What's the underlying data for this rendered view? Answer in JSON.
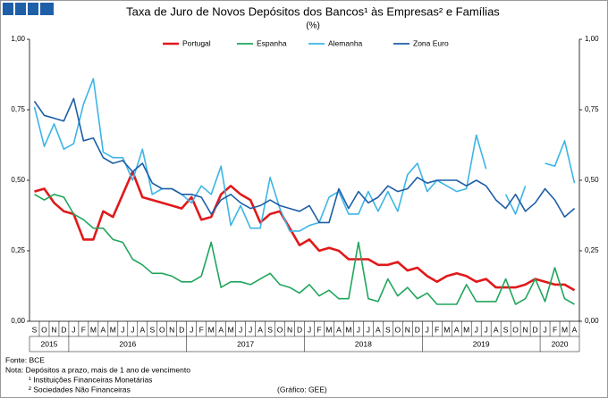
{
  "chart_data": {
    "type": "line",
    "title": "Taxa de Juro de Novos Depósitos dos Bancos¹ às Empresas² e Famílias",
    "subtitle": "(%)",
    "categories": [
      "S",
      "O",
      "N",
      "D",
      "J",
      "F",
      "M",
      "A",
      "M",
      "J",
      "J",
      "A",
      "S",
      "O",
      "N",
      "D",
      "J",
      "F",
      "M",
      "A",
      "M",
      "J",
      "J",
      "A",
      "S",
      "O",
      "N",
      "D",
      "J",
      "F",
      "M",
      "A",
      "M",
      "J",
      "J",
      "A",
      "S",
      "O",
      "N",
      "D",
      "J",
      "F",
      "M",
      "A",
      "M",
      "J",
      "J",
      "A",
      "S",
      "O",
      "N",
      "D",
      "J",
      "F",
      "M",
      "A"
    ],
    "years": [
      "2015",
      "2016",
      "2017",
      "2018",
      "2019",
      "2020"
    ],
    "series": [
      {
        "name": "Portugal",
        "color": "#e0191b",
        "values": [
          0.46,
          0.47,
          0.42,
          0.39,
          0.38,
          0.29,
          0.29,
          0.39,
          0.37,
          0.45,
          0.53,
          0.44,
          0.43,
          0.42,
          0.41,
          0.4,
          0.44,
          0.36,
          0.37,
          0.45,
          0.48,
          0.45,
          0.43,
          0.35,
          0.38,
          0.39,
          0.33,
          0.27,
          0.29,
          0.25,
          0.26,
          0.25,
          0.22,
          0.22,
          0.22,
          0.2,
          0.2,
          0.21,
          0.18,
          0.19,
          0.16,
          0.14,
          0.16,
          0.17,
          0.16,
          0.14,
          0.15,
          0.12,
          0.12,
          0.12,
          0.13,
          0.15,
          0.14,
          0.13,
          0.13,
          0.11
        ]
      },
      {
        "name": "Espanha",
        "color": "#20a55c",
        "values": [
          0.45,
          0.43,
          0.45,
          0.44,
          0.38,
          0.36,
          0.33,
          0.33,
          0.29,
          0.28,
          0.22,
          0.2,
          0.17,
          0.17,
          0.16,
          0.14,
          0.14,
          0.16,
          0.28,
          0.12,
          0.14,
          0.14,
          0.13,
          0.15,
          0.17,
          0.13,
          0.12,
          0.1,
          0.13,
          0.09,
          0.11,
          0.08,
          0.08,
          0.28,
          0.08,
          0.07,
          0.15,
          0.09,
          0.12,
          0.08,
          0.1,
          0.06,
          0.06,
          0.06,
          0.13,
          0.07,
          0.07,
          0.07,
          0.15,
          0.06,
          0.08,
          0.15,
          0.07,
          0.19,
          0.08,
          0.06
        ]
      },
      {
        "name": "Alemanha",
        "color": "#3db5e6",
        "values": [
          0.76,
          0.62,
          0.7,
          0.61,
          0.63,
          0.77,
          0.86,
          0.6,
          0.58,
          0.58,
          0.5,
          0.61,
          0.45,
          0.47,
          0.47,
          0.45,
          0.42,
          0.48,
          0.45,
          0.55,
          0.34,
          0.41,
          0.33,
          0.33,
          0.51,
          0.4,
          0.32,
          0.32,
          0.34,
          0.35,
          0.44,
          0.46,
          0.38,
          0.38,
          0.46,
          0.39,
          0.46,
          0.39,
          0.52,
          0.56,
          0.46,
          0.5,
          0.48,
          0.46,
          0.47,
          0.66,
          0.54,
          null,
          0.45,
          0.38,
          0.48,
          null,
          0.56,
          0.55,
          0.64,
          0.49
        ]
      },
      {
        "name": "Zona Euro",
        "color": "#1d5ea6",
        "values": [
          0.78,
          0.73,
          0.72,
          0.71,
          0.79,
          0.64,
          0.65,
          0.58,
          0.56,
          0.57,
          0.53,
          0.56,
          0.49,
          0.47,
          0.47,
          0.45,
          0.45,
          0.44,
          0.38,
          0.43,
          0.45,
          0.42,
          0.4,
          0.41,
          0.43,
          0.41,
          0.4,
          0.39,
          0.41,
          0.35,
          0.35,
          0.47,
          0.4,
          0.46,
          0.42,
          0.44,
          0.48,
          0.46,
          0.47,
          0.51,
          0.49,
          0.5,
          0.5,
          0.5,
          0.48,
          0.5,
          0.48,
          0.43,
          0.4,
          0.45,
          0.39,
          0.42,
          0.47,
          0.43,
          0.37,
          0.4
        ]
      }
    ],
    "ylim": [
      0,
      1
    ],
    "yticks": [
      {
        "value": 0,
        "label": "0,00"
      },
      {
        "value": 0.25,
        "label": "0,25"
      },
      {
        "value": 0.5,
        "label": "0,50"
      },
      {
        "value": 0.75,
        "label": "0,75"
      },
      {
        "value": 1,
        "label": "1,00"
      }
    ],
    "y2lim": [
      0,
      1
    ],
    "y2ticks": [
      {
        "value": 0,
        "label": "0,00"
      },
      {
        "value": 0.25,
        "label": "0,25"
      },
      {
        "value": 0.5,
        "label": "0,50"
      },
      {
        "value": 0.75,
        "label": "0,75"
      },
      {
        "value": 1,
        "label": "1,00"
      }
    ],
    "legend": "top",
    "notes": [
      "Fonte: BCE",
      "Nota: Depósitos a prazo, mais de 1 ano de vencimento",
      "¹ Instituições Financeiras Monetárias",
      "² Sociedades Não Financeiras"
    ],
    "credit": "(Gráfico: GEE)"
  }
}
